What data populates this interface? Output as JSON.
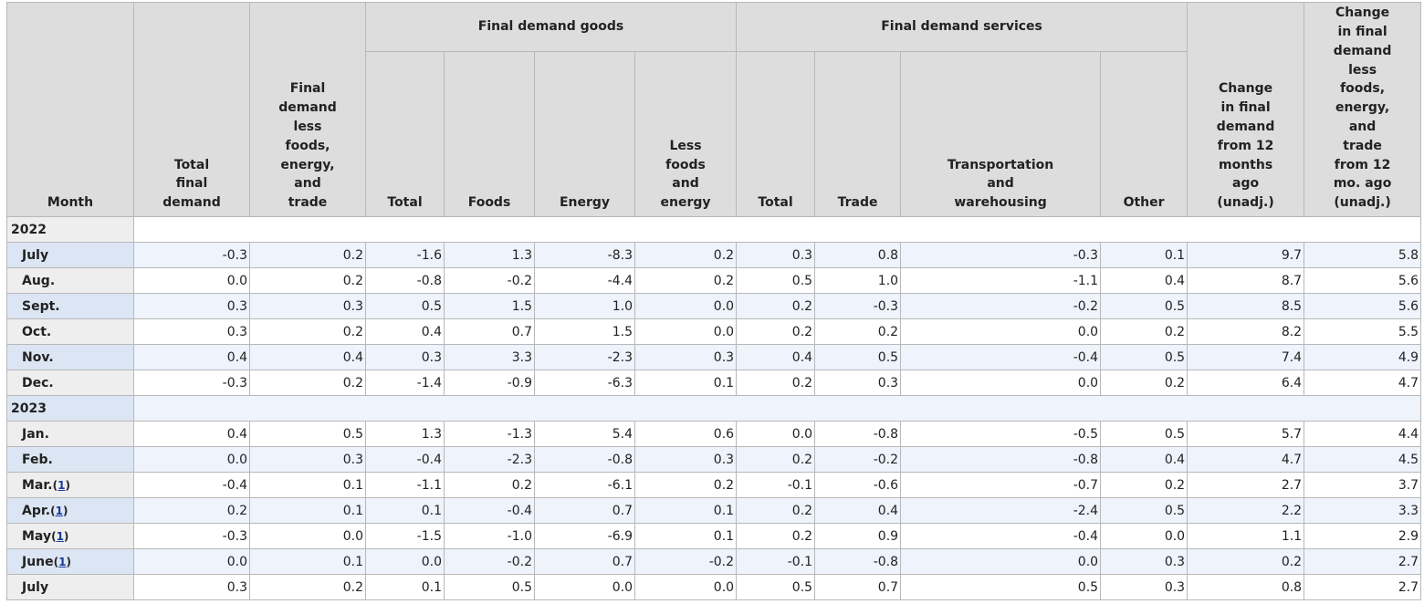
{
  "table": {
    "group_headers": [
      "Final demand goods",
      "Final demand services"
    ],
    "columns": [
      {
        "lines": [
          "Month"
        ]
      },
      {
        "lines": [
          "Total",
          "final",
          "demand"
        ]
      },
      {
        "lines": [
          "Final",
          "demand",
          "less",
          "foods,",
          "energy,",
          "and",
          "trade"
        ]
      },
      {
        "lines": [
          "Total"
        ]
      },
      {
        "lines": [
          "Foods"
        ]
      },
      {
        "lines": [
          "Energy"
        ]
      },
      {
        "lines": [
          "Less",
          "foods",
          "and",
          "energy"
        ]
      },
      {
        "lines": [
          "Total"
        ]
      },
      {
        "lines": [
          "Trade"
        ]
      },
      {
        "lines": [
          "Transportation",
          "and",
          "warehousing"
        ]
      },
      {
        "lines": [
          "Other"
        ]
      },
      {
        "lines": [
          "Change",
          "in final",
          "demand",
          "from 12",
          "months",
          "ago",
          "(unadj.)"
        ]
      },
      {
        "lines": [
          "Change",
          "in final",
          "demand",
          "less",
          "foods,",
          "energy,",
          "and",
          "trade",
          "from 12",
          "mo. ago",
          "(unadj.)"
        ]
      }
    ],
    "sections": [
      {
        "year": "2022",
        "rows": [
          {
            "month": "July",
            "values": [
              "-0.3",
              "0.2",
              "-1.6",
              "1.3",
              "-8.3",
              "0.2",
              "0.3",
              "0.8",
              "-0.3",
              "0.1",
              "9.7",
              "5.8"
            ]
          },
          {
            "month": "Aug.",
            "values": [
              "0.0",
              "0.2",
              "-0.8",
              "-0.2",
              "-4.4",
              "0.2",
              "0.5",
              "1.0",
              "-1.1",
              "0.4",
              "8.7",
              "5.6"
            ]
          },
          {
            "month": "Sept.",
            "values": [
              "0.3",
              "0.3",
              "0.5",
              "1.5",
              "1.0",
              "0.0",
              "0.2",
              "-0.3",
              "-0.2",
              "0.5",
              "8.5",
              "5.6"
            ]
          },
          {
            "month": "Oct.",
            "values": [
              "0.3",
              "0.2",
              "0.4",
              "0.7",
              "1.5",
              "0.0",
              "0.2",
              "0.2",
              "0.0",
              "0.2",
              "8.2",
              "5.5"
            ]
          },
          {
            "month": "Nov.",
            "values": [
              "0.4",
              "0.4",
              "0.3",
              "3.3",
              "-2.3",
              "0.3",
              "0.4",
              "0.5",
              "-0.4",
              "0.5",
              "7.4",
              "4.9"
            ]
          },
          {
            "month": "Dec.",
            "values": [
              "-0.3",
              "0.2",
              "-1.4",
              "-0.9",
              "-6.3",
              "0.1",
              "0.2",
              "0.3",
              "0.0",
              "0.2",
              "6.4",
              "4.7"
            ]
          }
        ]
      },
      {
        "year": "2023",
        "rows": [
          {
            "month": "Jan.",
            "values": [
              "0.4",
              "0.5",
              "1.3",
              "-1.3",
              "5.4",
              "0.6",
              "0.0",
              "-0.8",
              "-0.5",
              "0.5",
              "5.7",
              "4.4"
            ]
          },
          {
            "month": "Feb.",
            "values": [
              "0.0",
              "0.3",
              "-0.4",
              "-2.3",
              "-0.8",
              "0.3",
              "0.2",
              "-0.2",
              "-0.8",
              "0.4",
              "4.7",
              "4.5"
            ]
          },
          {
            "month": "Mar.",
            "footnote": {
              "open": "(",
              "ref": "1",
              "close": ")"
            },
            "values": [
              "-0.4",
              "0.1",
              "-1.1",
              "0.2",
              "-6.1",
              "0.2",
              "-0.1",
              "-0.6",
              "-0.7",
              "0.2",
              "2.7",
              "3.7"
            ]
          },
          {
            "month": "Apr.",
            "footnote": {
              "open": "(",
              "ref": "1",
              "close": ")"
            },
            "values": [
              "0.2",
              "0.1",
              "0.1",
              "-0.4",
              "0.7",
              "0.1",
              "0.2",
              "0.4",
              "-2.4",
              "0.5",
              "2.2",
              "3.3"
            ]
          },
          {
            "month": "May",
            "footnote": {
              "open": "(",
              "ref": "1",
              "close": ")"
            },
            "values": [
              "-0.3",
              "0.0",
              "-1.5",
              "-1.0",
              "-6.9",
              "0.1",
              "0.2",
              "0.9",
              "-0.4",
              "0.0",
              "1.1",
              "2.9"
            ]
          },
          {
            "month": "June",
            "footnote": {
              "open": "(",
              "ref": "1",
              "close": ")"
            },
            "values": [
              "0.0",
              "0.1",
              "0.0",
              "-0.2",
              "0.7",
              "-0.2",
              "-0.1",
              "-0.8",
              "0.0",
              "0.3",
              "0.2",
              "2.7"
            ]
          },
          {
            "month": "July",
            "values": [
              "0.3",
              "0.2",
              "0.1",
              "0.5",
              "0.0",
              "0.0",
              "0.5",
              "0.7",
              "0.5",
              "0.3",
              "0.8",
              "2.7"
            ]
          }
        ]
      }
    ]
  }
}
